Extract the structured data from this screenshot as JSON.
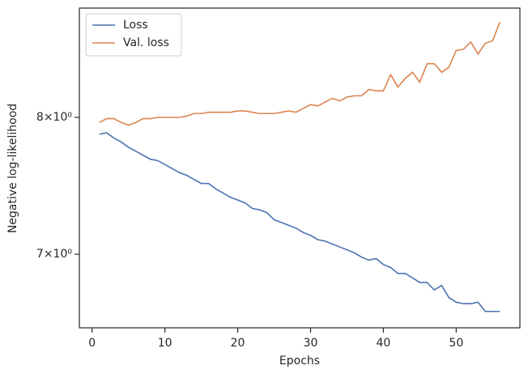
{
  "chart_data": {
    "type": "line",
    "xlabel": "Epochs",
    "ylabel": "Negative log-likelihood",
    "x": [
      1,
      2,
      3,
      4,
      5,
      6,
      7,
      8,
      9,
      10,
      11,
      12,
      13,
      14,
      15,
      16,
      17,
      18,
      19,
      20,
      21,
      22,
      23,
      24,
      25,
      26,
      27,
      28,
      29,
      30,
      31,
      32,
      33,
      34,
      35,
      36,
      37,
      38,
      39,
      40,
      41,
      42,
      43,
      44,
      45,
      46,
      47,
      48,
      49,
      50,
      51,
      52,
      53,
      54,
      55,
      56
    ],
    "series": [
      {
        "name": "Loss",
        "color": "#4c72b0",
        "values": [
          7.87,
          7.88,
          7.84,
          7.81,
          7.77,
          7.74,
          7.71,
          7.68,
          7.67,
          7.64,
          7.61,
          7.58,
          7.56,
          7.53,
          7.5,
          7.5,
          7.46,
          7.43,
          7.4,
          7.38,
          7.36,
          7.32,
          7.31,
          7.29,
          7.24,
          7.22,
          7.2,
          7.18,
          7.15,
          7.13,
          7.1,
          7.09,
          7.07,
          7.05,
          7.03,
          7.01,
          6.98,
          6.96,
          6.97,
          6.93,
          6.91,
          6.87,
          6.87,
          6.84,
          6.81,
          6.81,
          6.76,
          6.79,
          6.71,
          6.68,
          6.67,
          6.67,
          6.68,
          6.62,
          6.62,
          6.62
        ]
      },
      {
        "name": "Val. loss",
        "color": "#dd8452",
        "values": [
          7.96,
          7.99,
          7.99,
          7.96,
          7.94,
          7.96,
          7.99,
          7.99,
          8.0,
          8.0,
          8.0,
          8.0,
          8.01,
          8.03,
          8.03,
          8.04,
          8.04,
          8.04,
          8.04,
          8.05,
          8.05,
          8.04,
          8.03,
          8.03,
          8.03,
          8.04,
          8.05,
          8.04,
          8.07,
          8.1,
          8.09,
          8.12,
          8.15,
          8.13,
          8.16,
          8.17,
          8.17,
          8.22,
          8.21,
          8.21,
          8.34,
          8.24,
          8.31,
          8.36,
          8.28,
          8.43,
          8.43,
          8.36,
          8.4,
          8.54,
          8.55,
          8.61,
          8.51,
          8.6,
          8.62,
          8.78
        ]
      }
    ],
    "xlim": [
      -1.75,
      58.75
    ],
    "xticks": [
      0,
      10,
      20,
      30,
      40,
      50
    ],
    "ylim": [
      6.515,
      8.9
    ],
    "yscale": "log",
    "yticks": [
      {
        "value": 7,
        "label": "7×10⁰"
      },
      {
        "value": 8,
        "label": "8×10⁰"
      }
    ],
    "legend": "upper left"
  }
}
